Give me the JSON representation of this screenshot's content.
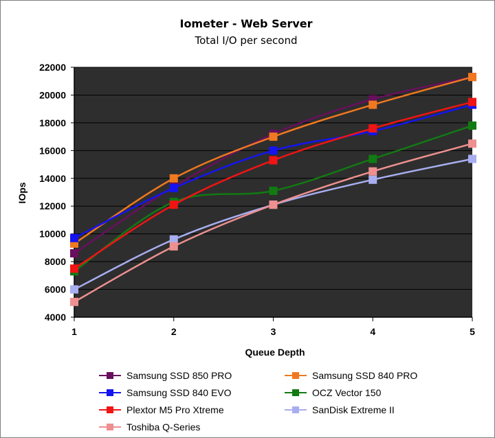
{
  "chart_data": {
    "type": "line",
    "title": "Iometer - Web Server",
    "subtitle": "Total I/O per second",
    "xlabel": "Queue Depth",
    "ylabel": "IOps",
    "x": [
      1,
      2,
      3,
      4,
      5
    ],
    "x_tick_labels": [
      "1",
      "2",
      "3",
      "4",
      "5"
    ],
    "ylim": [
      4000,
      22000
    ],
    "y_ticks": [
      4000,
      6000,
      8000,
      10000,
      12000,
      14000,
      16000,
      18000,
      20000,
      22000
    ],
    "y_tick_labels": [
      "4000",
      "6000",
      "8000",
      "10000",
      "12000",
      "14000",
      "16000",
      "18000",
      "20000",
      "22000"
    ],
    "plot_background": "#2e2e2e",
    "grid": "horizontal",
    "legend_position": "bottom",
    "series": [
      {
        "name": "Samsung SSD 850 PRO",
        "color": "#6a0f5e",
        "values": [
          8600,
          13400,
          17200,
          19700,
          21300
        ]
      },
      {
        "name": "Samsung SSD 840 PRO",
        "color": "#f07820",
        "values": [
          9300,
          14000,
          17000,
          19300,
          21300
        ]
      },
      {
        "name": "Samsung SSD 840 EVO",
        "color": "#1414f0",
        "values": [
          9700,
          13300,
          16000,
          17400,
          19300
        ]
      },
      {
        "name": "OCZ Vector 150",
        "color": "#127a12",
        "values": [
          7300,
          12300,
          13100,
          15400,
          17800
        ]
      },
      {
        "name": "Plextor M5 Pro Xtreme",
        "color": "#f01414",
        "values": [
          7500,
          12100,
          15300,
          17600,
          19500
        ]
      },
      {
        "name": "SanDisk Extreme II",
        "color": "#a8aef0",
        "values": [
          6000,
          9600,
          12100,
          13900,
          15400
        ]
      },
      {
        "name": "Toshiba Q-Series",
        "color": "#ee9090",
        "values": [
          5100,
          9100,
          12100,
          14500,
          16500
        ]
      }
    ]
  }
}
